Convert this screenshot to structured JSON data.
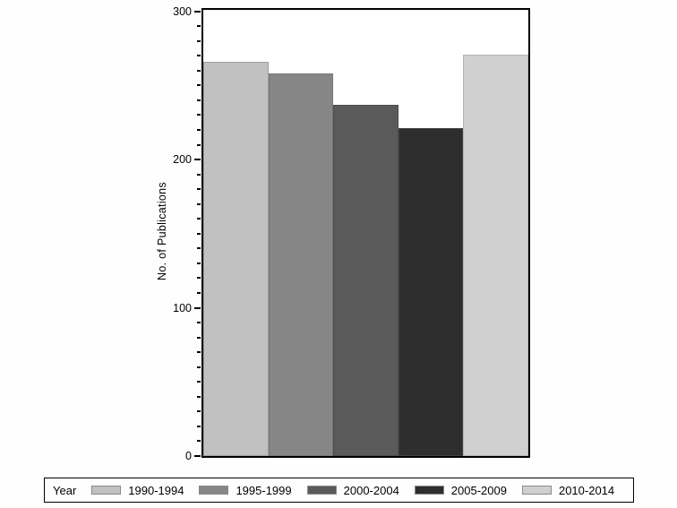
{
  "chart_data": {
    "type": "bar",
    "title": "",
    "xlabel": "",
    "ylabel": "No. of Publications",
    "categories": [
      "1990-1994",
      "1995-1999",
      "2000-2004",
      "2005-2009",
      "2010-2014"
    ],
    "values": [
      266,
      258,
      237,
      221,
      271
    ],
    "bar_colors": [
      "#c1c1c1",
      "#868686",
      "#5a5a5a",
      "#2e2e2e",
      "#d0d0d0"
    ],
    "bar_border_colors": [
      "#9e9e9e",
      "#757575",
      "#4c4c4c",
      "#414141",
      "#b5b5b5"
    ],
    "ylim": [
      0,
      301
    ],
    "yticks": [
      0,
      100,
      200,
      300
    ],
    "minor_tick_step": 10,
    "grid": false,
    "background_color": "#fefefe",
    "axis_color": "#000000",
    "legend": {
      "title": "Year",
      "position": "bottom",
      "entries": [
        "1990-1994",
        "1995-1999",
        "2000-2004",
        "2005-2009",
        "2010-2014"
      ]
    }
  }
}
